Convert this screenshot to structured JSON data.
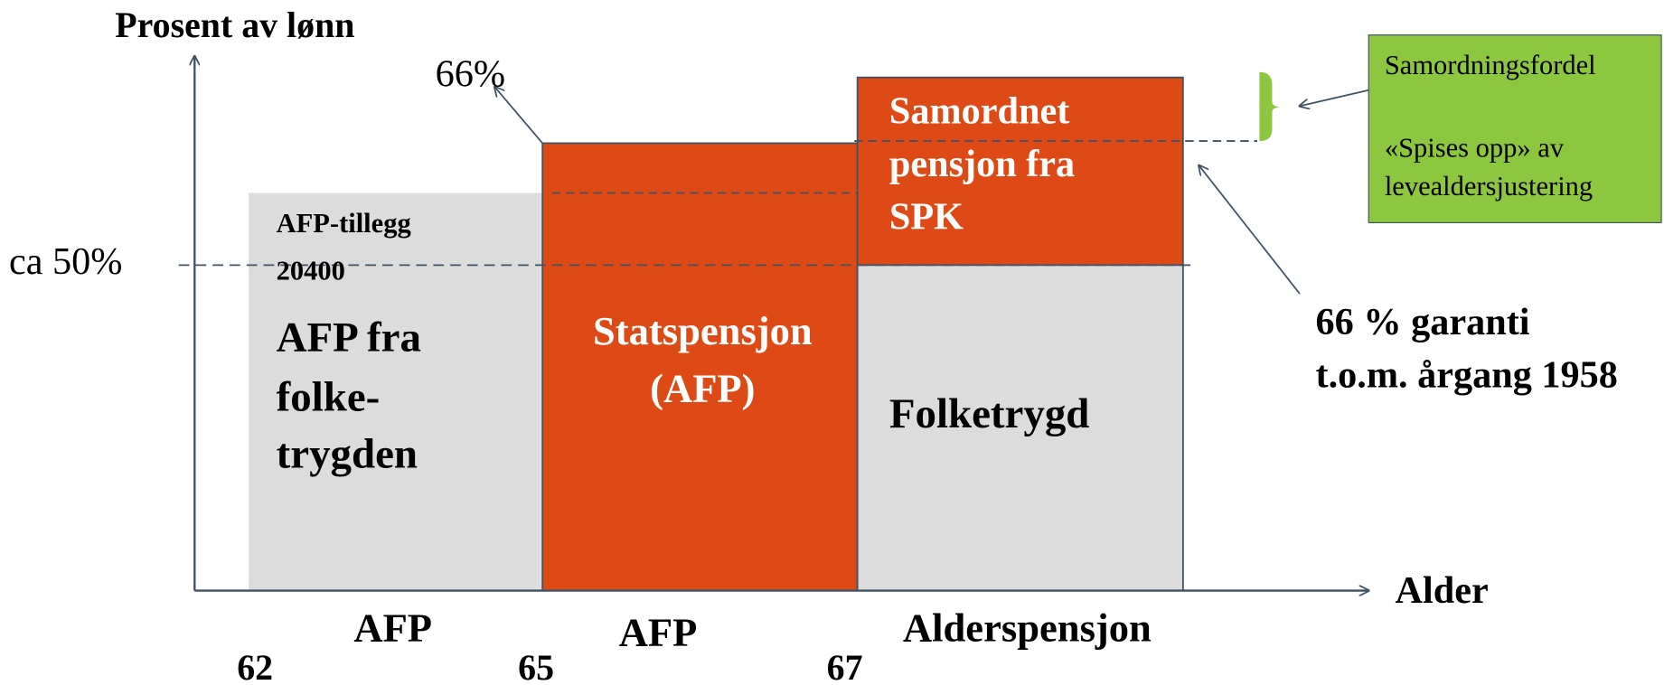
{
  "axes": {
    "y_label": "Prosent av lønn",
    "x_label": "Alder",
    "level_66": "66%",
    "level_50": "ca 50%"
  },
  "blocks": {
    "afp_folketrygd": {
      "addon": [
        "AFP-tillegg",
        "20400"
      ],
      "label": [
        "AFP fra",
        "folke-",
        "trygden"
      ]
    },
    "statspensjon": {
      "label": [
        "Statspensjon",
        "(AFP)"
      ]
    },
    "samordnet": {
      "label": [
        "Samordnet",
        "pensjon fra",
        "SPK"
      ]
    },
    "folketrygd": {
      "label": "Folketrygd"
    }
  },
  "note_box": {
    "lines": [
      "Samordningsfordel",
      "«Spises opp» av",
      "levealdersjustering"
    ]
  },
  "guarantee": {
    "lines": [
      "66 % garanti",
      "t.o.m. årgang 1958"
    ]
  },
  "periods": [
    "AFP",
    "AFP",
    "Alderspensjon"
  ],
  "ages": [
    "62",
    "65",
    "67"
  ]
}
